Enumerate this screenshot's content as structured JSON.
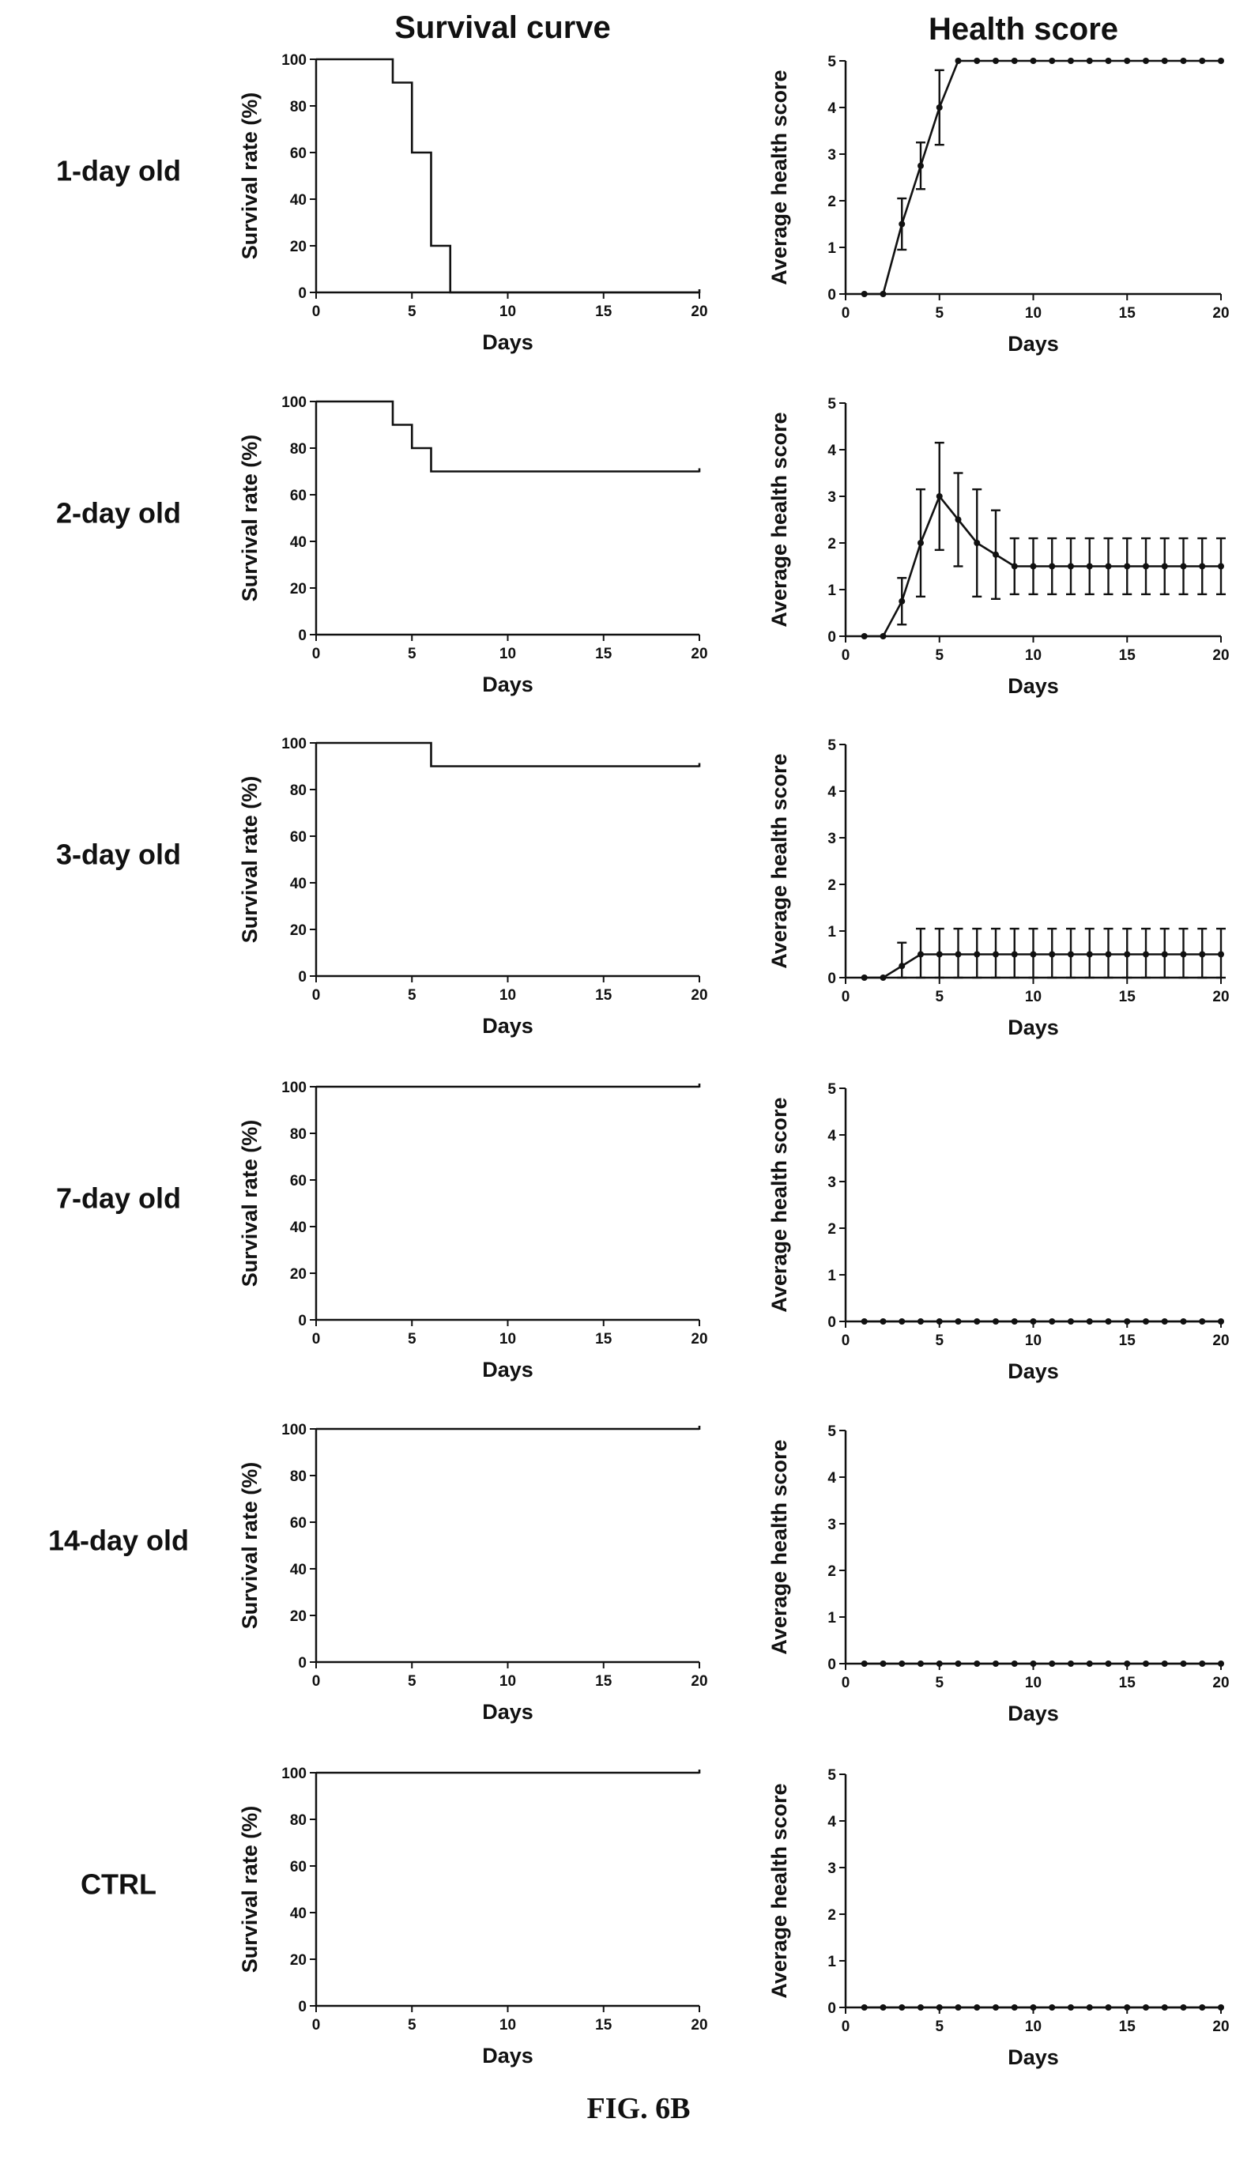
{
  "figure": {
    "column_titles": [
      "Survival curve",
      "Health score"
    ],
    "caption": "FIG. 6B"
  },
  "chart_data": [
    {
      "type": "line",
      "panel": "survival",
      "row_label": "1-day old",
      "step": true,
      "xlabel": "Days",
      "ylabel": "Survival rate (%)",
      "xlim": [
        0,
        20
      ],
      "ylim": [
        0,
        100
      ],
      "xticks": [
        0,
        5,
        10,
        15,
        20
      ],
      "yticks": [
        0,
        20,
        40,
        60,
        80,
        100
      ],
      "x": [
        0,
        4,
        5,
        6,
        7,
        20
      ],
      "y": [
        100,
        90,
        60,
        20,
        0,
        0
      ]
    },
    {
      "type": "line",
      "panel": "health",
      "row_label": "1-day old",
      "xlabel": "Days",
      "ylabel": "Average health score",
      "xlim": [
        0,
        20
      ],
      "ylim": [
        0,
        5
      ],
      "xticks": [
        0,
        5,
        10,
        15,
        20
      ],
      "yticks": [
        0,
        1,
        2,
        3,
        4,
        5
      ],
      "x": [
        1,
        2,
        3,
        4,
        5,
        6,
        7,
        8,
        9,
        10,
        11,
        12,
        13,
        14,
        15,
        16,
        17,
        18,
        19,
        20
      ],
      "y": [
        0,
        0,
        1.5,
        2.75,
        4,
        5,
        5,
        5,
        5,
        5,
        5,
        5,
        5,
        5,
        5,
        5,
        5,
        5,
        5,
        5
      ],
      "error": [
        0,
        0,
        0.55,
        0.5,
        0.8,
        0,
        0,
        0,
        0,
        0,
        0,
        0,
        0,
        0,
        0,
        0,
        0,
        0,
        0,
        0
      ]
    },
    {
      "type": "line",
      "panel": "survival",
      "row_label": "2-day old",
      "step": true,
      "xlabel": "Days",
      "ylabel": "Survival rate (%)",
      "xlim": [
        0,
        20
      ],
      "ylim": [
        0,
        100
      ],
      "xticks": [
        0,
        5,
        10,
        15,
        20
      ],
      "yticks": [
        0,
        20,
        40,
        60,
        80,
        100
      ],
      "x": [
        0,
        4,
        5,
        6,
        20
      ],
      "y": [
        100,
        90,
        80,
        70,
        70
      ]
    },
    {
      "type": "line",
      "panel": "health",
      "row_label": "2-day old",
      "xlabel": "Days",
      "ylabel": "Average health score",
      "xlim": [
        0,
        20
      ],
      "ylim": [
        0,
        5
      ],
      "xticks": [
        0,
        5,
        10,
        15,
        20
      ],
      "yticks": [
        0,
        1,
        2,
        3,
        4,
        5
      ],
      "x": [
        1,
        2,
        3,
        4,
        5,
        6,
        7,
        8,
        9,
        10,
        11,
        12,
        13,
        14,
        15,
        16,
        17,
        18,
        19,
        20
      ],
      "y": [
        0,
        0,
        0.75,
        2,
        3,
        2.5,
        2,
        1.75,
        1.5,
        1.5,
        1.5,
        1.5,
        1.5,
        1.5,
        1.5,
        1.5,
        1.5,
        1.5,
        1.5,
        1.5
      ],
      "error": [
        0,
        0,
        0.5,
        1.15,
        1.15,
        1.0,
        1.15,
        0.95,
        0.6,
        0.6,
        0.6,
        0.6,
        0.6,
        0.6,
        0.6,
        0.6,
        0.6,
        0.6,
        0.6,
        0.6
      ]
    },
    {
      "type": "line",
      "panel": "survival",
      "row_label": "3-day old",
      "step": true,
      "xlabel": "Days",
      "ylabel": "Survival rate (%)",
      "xlim": [
        0,
        20
      ],
      "ylim": [
        0,
        100
      ],
      "xticks": [
        0,
        5,
        10,
        15,
        20
      ],
      "yticks": [
        0,
        20,
        40,
        60,
        80,
        100
      ],
      "x": [
        0,
        6,
        20
      ],
      "y": [
        100,
        90,
        90
      ]
    },
    {
      "type": "line",
      "panel": "health",
      "row_label": "3-day old",
      "xlabel": "Days",
      "ylabel": "Average health score",
      "xlim": [
        0,
        20
      ],
      "ylim": [
        0,
        5
      ],
      "xticks": [
        0,
        5,
        10,
        15,
        20
      ],
      "yticks": [
        0,
        1,
        2,
        3,
        4,
        5
      ],
      "x": [
        1,
        2,
        3,
        4,
        5,
        6,
        7,
        8,
        9,
        10,
        11,
        12,
        13,
        14,
        15,
        16,
        17,
        18,
        19,
        20
      ],
      "y": [
        0,
        0,
        0.25,
        0.5,
        0.5,
        0.5,
        0.5,
        0.5,
        0.5,
        0.5,
        0.5,
        0.5,
        0.5,
        0.5,
        0.5,
        0.5,
        0.5,
        0.5,
        0.5,
        0.5
      ],
      "error": [
        0,
        0,
        0.5,
        0.55,
        0.55,
        0.55,
        0.55,
        0.55,
        0.55,
        0.55,
        0.55,
        0.55,
        0.55,
        0.55,
        0.55,
        0.55,
        0.55,
        0.55,
        0.55,
        0.55
      ]
    },
    {
      "type": "line",
      "panel": "survival",
      "row_label": "7-day old",
      "step": true,
      "xlabel": "Days",
      "ylabel": "Survival rate (%)",
      "xlim": [
        0,
        20
      ],
      "ylim": [
        0,
        100
      ],
      "xticks": [
        0,
        5,
        10,
        15,
        20
      ],
      "yticks": [
        0,
        20,
        40,
        60,
        80,
        100
      ],
      "x": [
        0,
        20
      ],
      "y": [
        100,
        100
      ]
    },
    {
      "type": "line",
      "panel": "health",
      "row_label": "7-day old",
      "xlabel": "Days",
      "ylabel": "Average health score",
      "xlim": [
        0,
        20
      ],
      "ylim": [
        0,
        5
      ],
      "xticks": [
        0,
        5,
        10,
        15,
        20
      ],
      "yticks": [
        0,
        1,
        2,
        3,
        4,
        5
      ],
      "x": [
        1,
        2,
        3,
        4,
        5,
        6,
        7,
        8,
        9,
        10,
        11,
        12,
        13,
        14,
        15,
        16,
        17,
        18,
        19,
        20
      ],
      "y": [
        0,
        0,
        0,
        0,
        0,
        0,
        0,
        0,
        0,
        0,
        0,
        0,
        0,
        0,
        0,
        0,
        0,
        0,
        0,
        0
      ],
      "error": [
        0,
        0,
        0,
        0,
        0,
        0,
        0,
        0,
        0,
        0,
        0,
        0,
        0,
        0,
        0,
        0,
        0,
        0,
        0,
        0
      ]
    },
    {
      "type": "line",
      "panel": "survival",
      "row_label": "14-day old",
      "step": true,
      "xlabel": "Days",
      "ylabel": "Survival rate (%)",
      "xlim": [
        0,
        20
      ],
      "ylim": [
        0,
        100
      ],
      "xticks": [
        0,
        5,
        10,
        15,
        20
      ],
      "yticks": [
        0,
        20,
        40,
        60,
        80,
        100
      ],
      "x": [
        0,
        20
      ],
      "y": [
        100,
        100
      ]
    },
    {
      "type": "line",
      "panel": "health",
      "row_label": "14-day old",
      "xlabel": "Days",
      "ylabel": "Average health score",
      "xlim": [
        0,
        20
      ],
      "ylim": [
        0,
        5
      ],
      "xticks": [
        0,
        5,
        10,
        15,
        20
      ],
      "yticks": [
        0,
        1,
        2,
        3,
        4,
        5
      ],
      "x": [
        1,
        2,
        3,
        4,
        5,
        6,
        7,
        8,
        9,
        10,
        11,
        12,
        13,
        14,
        15,
        16,
        17,
        18,
        19,
        20
      ],
      "y": [
        0,
        0,
        0,
        0,
        0,
        0,
        0,
        0,
        0,
        0,
        0,
        0,
        0,
        0,
        0,
        0,
        0,
        0,
        0,
        0
      ],
      "error": [
        0,
        0,
        0,
        0,
        0,
        0,
        0,
        0,
        0,
        0,
        0,
        0,
        0,
        0,
        0,
        0,
        0,
        0,
        0,
        0
      ]
    },
    {
      "type": "line",
      "panel": "survival",
      "row_label": "CTRL",
      "step": true,
      "xlabel": "Days",
      "ylabel": "Survival rate (%)",
      "xlim": [
        0,
        20
      ],
      "ylim": [
        0,
        100
      ],
      "xticks": [
        0,
        5,
        10,
        15,
        20
      ],
      "yticks": [
        0,
        20,
        40,
        60,
        80,
        100
      ],
      "x": [
        0,
        20
      ],
      "y": [
        100,
        100
      ]
    },
    {
      "type": "line",
      "panel": "health",
      "row_label": "CTRL",
      "xlabel": "Days",
      "ylabel": "Average health score",
      "xlim": [
        0,
        20
      ],
      "ylim": [
        0,
        5
      ],
      "xticks": [
        0,
        5,
        10,
        15,
        20
      ],
      "yticks": [
        0,
        1,
        2,
        3,
        4,
        5
      ],
      "x": [
        1,
        2,
        3,
        4,
        5,
        6,
        7,
        8,
        9,
        10,
        11,
        12,
        13,
        14,
        15,
        16,
        17,
        18,
        19,
        20
      ],
      "y": [
        0,
        0,
        0,
        0,
        0,
        0,
        0,
        0,
        0,
        0,
        0,
        0,
        0,
        0,
        0,
        0,
        0,
        0,
        0,
        0
      ],
      "error": [
        0,
        0,
        0,
        0,
        0,
        0,
        0,
        0,
        0,
        0,
        0,
        0,
        0,
        0,
        0,
        0,
        0,
        0,
        0,
        0
      ]
    }
  ]
}
